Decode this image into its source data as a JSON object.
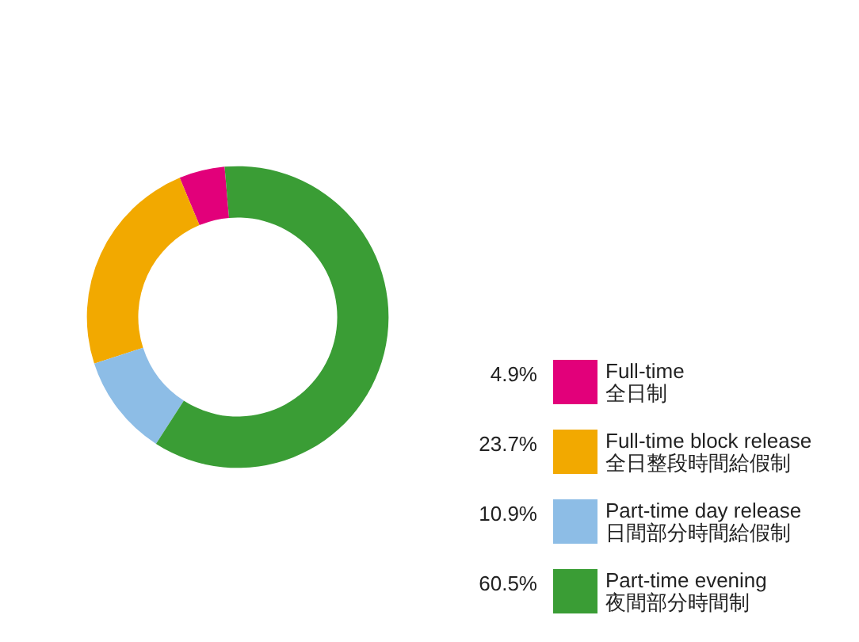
{
  "chart_data": {
    "type": "donut",
    "categories": [
      "Full-time\n全日制",
      "Full-time block release\n全日整段時間給假制",
      "Part-time day release\n日間部分時間給假制",
      "Part-time evening\n夜間部分時間制"
    ],
    "values": [
      4.9,
      23.7,
      10.9,
      60.5
    ],
    "colors": [
      "#e2007a",
      "#f2a900",
      "#8dbde6",
      "#3a9d35"
    ],
    "value_labels": [
      "4.9%",
      "23.7%",
      "10.9%",
      "60.5%"
    ],
    "legend": "bottom right"
  }
}
